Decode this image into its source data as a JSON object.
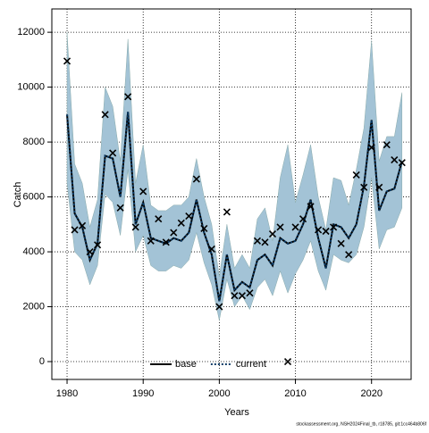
{
  "chart_data": {
    "type": "line",
    "xlabel": "Years",
    "ylabel": "Catch",
    "footer": "stockassessment.org, NSH2024Final_tb, r18785, git:1cc464b806f",
    "x": [
      1980,
      1981,
      1982,
      1983,
      1984,
      1985,
      1986,
      1987,
      1988,
      1989,
      1990,
      1991,
      1992,
      1993,
      1994,
      1995,
      1996,
      1997,
      1998,
      1999,
      2000,
      2001,
      2002,
      2003,
      2004,
      2005,
      2006,
      2007,
      2008,
      2009,
      2010,
      2011,
      2012,
      2013,
      2014,
      2015,
      2016,
      2017,
      2018,
      2019,
      2020,
      2021,
      2022,
      2023,
      2024
    ],
    "series": [
      {
        "name": "base",
        "color": "#000000",
        "dash": "solid",
        "values": [
          9000,
          5400,
          4900,
          3700,
          4300,
          7500,
          7400,
          6000,
          9100,
          5000,
          5800,
          4500,
          4400,
          4300,
          4500,
          4400,
          4700,
          5900,
          4700,
          3900,
          2200,
          3900,
          2600,
          2900,
          2700,
          3700,
          3900,
          3500,
          4500,
          4300,
          4400,
          5000,
          5900,
          4500,
          3400,
          5000,
          4900,
          4500,
          5000,
          6400,
          8800,
          5500,
          6200,
          6300,
          7300
        ]
      },
      {
        "name": "current",
        "color": "#0b3b66",
        "dash": "dotted",
        "values": [
          9000,
          5400,
          4900,
          3700,
          4300,
          7500,
          7400,
          6000,
          9100,
          5000,
          5800,
          4500,
          4400,
          4300,
          4500,
          4400,
          4700,
          5900,
          4700,
          3900,
          2200,
          3900,
          2600,
          2900,
          2700,
          3700,
          3900,
          3500,
          4500,
          4300,
          4400,
          5000,
          5900,
          4500,
          3400,
          5000,
          4900,
          4500,
          5000,
          6400,
          8800,
          5500,
          6200,
          6300,
          7300
        ]
      }
    ],
    "band": {
      "color": "#a3c3d6",
      "upper": [
        12000,
        7200,
        6500,
        4900,
        5900,
        10000,
        9300,
        7300,
        11750,
        6500,
        7900,
        5700,
        5500,
        5500,
        5700,
        5700,
        6000,
        7400,
        6000,
        5000,
        3100,
        5000,
        3400,
        3900,
        3400,
        5200,
        5600,
        4400,
        6700,
        7900,
        5800,
        6800,
        7900,
        6000,
        4800,
        6700,
        6600,
        5700,
        7000,
        8500,
        11700,
        7300,
        8200,
        8200,
        9800
      ],
      "lower": [
        6500,
        4000,
        3700,
        2800,
        3500,
        6100,
        5800,
        4600,
        7000,
        4000,
        4600,
        3500,
        3300,
        3300,
        3500,
        3400,
        3700,
        4700,
        3600,
        2800,
        1500,
        3000,
        2000,
        2400,
        1900,
        2700,
        3000,
        2400,
        3300,
        2500,
        3200,
        3700,
        4400,
        3300,
        2600,
        3900,
        3700,
        3600,
        3900,
        4900,
        6700,
        4100,
        4800,
        4900,
        5600
      ]
    },
    "points": {
      "color": "#000000",
      "values": [
        10950,
        4800,
        4950,
        4000,
        4250,
        9000,
        7600,
        5600,
        9650,
        4900,
        6200,
        4400,
        5200,
        4350,
        4700,
        5050,
        5300,
        6650,
        4850,
        4100,
        2000,
        5450,
        2400,
        2400,
        2500,
        4400,
        4350,
        4650,
        4900,
        0,
        4900,
        5200,
        5650,
        4800,
        4750,
        4900,
        4300,
        3900,
        6800,
        6350,
        7800,
        6350,
        7900,
        7350,
        7250
      ]
    },
    "xlim": [
      1978,
      2025.2
    ],
    "ylim": [
      -650,
      12850
    ],
    "xticks": [
      1980,
      1990,
      2000,
      2010,
      2020
    ],
    "yticks": [
      0,
      2000,
      4000,
      6000,
      8000,
      10000,
      12000
    ],
    "grid": true,
    "legend": "bottom"
  }
}
